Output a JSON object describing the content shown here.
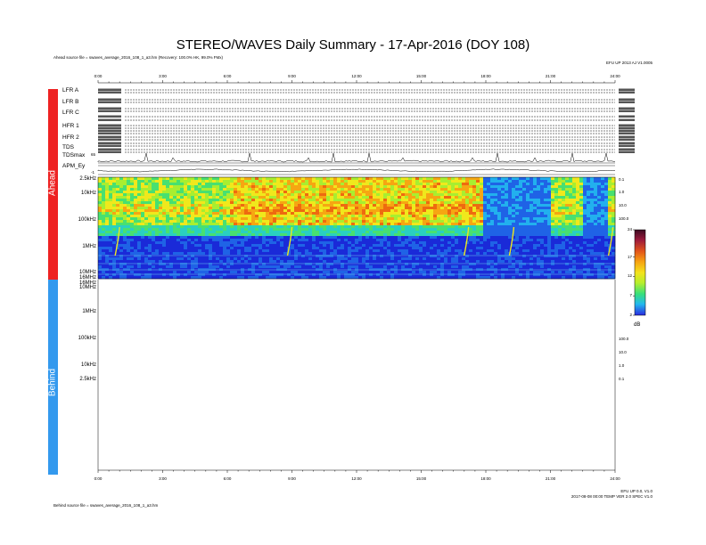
{
  "title": "STEREO/WAVES Daily Summary - 17-Apr-2016 (DOY 108)",
  "ahead_source": "Ahead source file = swaves_average_2016_108_1_a3.hm (Recovery: 100.0% HK, 99.0% FMx)",
  "top_right_note": "EFU UP 2013 AJ V1.0005",
  "behind_source": "Behind source file = swaves_average_2016_108_1_a3.hm",
  "bottom_right_note_1": "EFU UP 0.0, V1.0",
  "bottom_right_note_2": "2017-08-08 00:00 TEMP VER 2.0 SPEC V1.0",
  "side_labels": {
    "ahead": "Ahead",
    "behind": "Behind"
  },
  "colors": {
    "ahead": "#ee2222",
    "behind": "#3399ee"
  },
  "time_ticks": [
    "0:00",
    "3:00",
    "6:00",
    "9:00",
    "12:00",
    "15:00",
    "18:00",
    "21:00",
    "24:00"
  ],
  "rows": {
    "lfr_a": "LFR A",
    "lfr_b": "LFR B",
    "lfr_c": "LFR C",
    "hfr_1": "HFR 1",
    "hfr_2": "HFR 2",
    "tds": "TDS",
    "tdsmax": "TDSmax",
    "tdsmax_val": "65",
    "apm": "APM_Ey",
    "apm_val": "-1"
  },
  "ahead_freq_labels": [
    "2.5kHz",
    "10kHz",
    "100kHz",
    "1MHz",
    "10MHz",
    "16MHz"
  ],
  "behind_freq_labels": [
    "16MHz",
    "10MHz",
    "1MHz",
    "100kHz",
    "10kHz",
    "2.5kHz"
  ],
  "ahead_right_labels": [
    "0.1",
    "1.0",
    "10.0",
    "100.0"
  ],
  "behind_right_labels": [
    "100.0",
    "10.0",
    "1.0",
    "0.1"
  ],
  "colorbar": {
    "ticks": [
      "24",
      "17",
      "12",
      "7",
      "2"
    ],
    "unit": "dB"
  },
  "chart_data": {
    "type": "heatmap",
    "title": "STEREO/WAVES Daily Summary - 17-Apr-2016 (DOY 108)",
    "x_ticks": [
      "0:00",
      "3:00",
      "6:00",
      "9:00",
      "12:00",
      "15:00",
      "18:00",
      "21:00",
      "24:00"
    ],
    "x_range_hours": [
      0,
      24
    ],
    "y_ticks_ahead": [
      "2.5kHz",
      "10kHz",
      "100kHz",
      "1MHz",
      "10MHz",
      "16MHz"
    ],
    "y_ticks_behind": [
      "16MHz",
      "10MHz",
      "1MHz",
      "100kHz",
      "10kHz",
      "2.5kHz"
    ],
    "colorbar_range_db": [
      2,
      24
    ],
    "colorbar_ticks": [
      24,
      17,
      12,
      7,
      2
    ],
    "colorbar_unit": "dB",
    "type_iii_burst_times_hours": [
      1.0,
      9.0,
      17.2,
      19.3,
      23.9
    ]
  }
}
